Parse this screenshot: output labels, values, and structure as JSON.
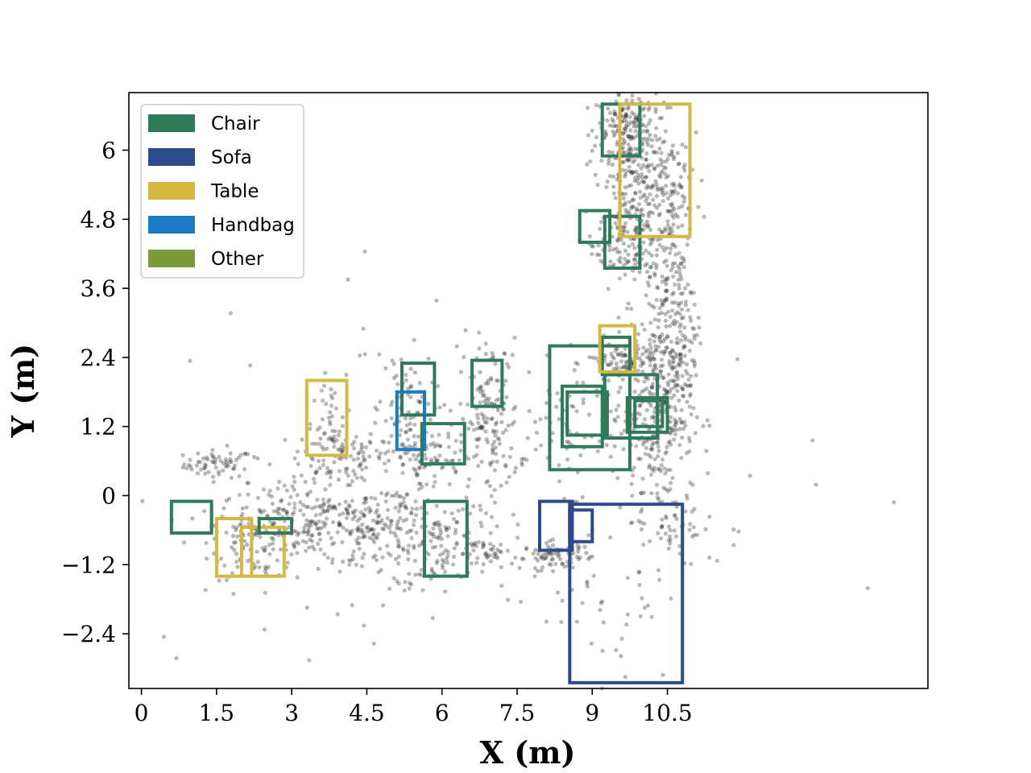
{
  "chart_data": {
    "type": "scatter",
    "xlabel": "X (m)",
    "ylabel": "Y (m)",
    "xlim": [
      -0.25,
      15.7
    ],
    "ylim": [
      -3.35,
      7.0
    ],
    "xticks": [
      0,
      1.5,
      3,
      4.5,
      6,
      7.5,
      9,
      10.5
    ],
    "xtick_labels": [
      "0",
      "1.5",
      "3",
      "4.5",
      "6",
      "7.5",
      "9",
      "10.5"
    ],
    "yticks": [
      -2.4,
      -1.2,
      0,
      1.2,
      2.4,
      3.6,
      4.8,
      6
    ],
    "ytick_labels": [
      "−2.4",
      "−1.2",
      "0",
      "1.2",
      "2.4",
      "3.6",
      "4.8",
      "6"
    ],
    "legend_position": "top-left",
    "legend": [
      {
        "label": "Chair",
        "color": "#2e7a5a"
      },
      {
        "label": "Sofa",
        "color": "#2e4a8c"
      },
      {
        "label": "Table",
        "color": "#d4b840"
      },
      {
        "label": "Handbag",
        "color": "#1a7ac4"
      },
      {
        "label": "Other",
        "color": "#7a9a3a"
      }
    ],
    "point_color": "#222222",
    "point_clusters": [
      {
        "cx": 1.55,
        "cy": 0.55,
        "sx": 0.35,
        "sy": 0.12,
        "n": 60
      },
      {
        "cx": 3.9,
        "cy": 0.7,
        "sx": 0.45,
        "sy": 0.25,
        "n": 90
      },
      {
        "cx": 3.8,
        "cy": 1.5,
        "sx": 0.2,
        "sy": 0.4,
        "n": 25
      },
      {
        "cx": 3.5,
        "cy": -0.5,
        "sx": 1.0,
        "sy": 0.35,
        "n": 260
      },
      {
        "cx": 2.3,
        "cy": -0.75,
        "sx": 0.45,
        "sy": 0.35,
        "n": 80
      },
      {
        "cx": 4.9,
        "cy": -0.65,
        "sx": 0.8,
        "sy": 0.4,
        "n": 120
      },
      {
        "cx": 5.9,
        "cy": -0.7,
        "sx": 0.45,
        "sy": 0.5,
        "n": 90
      },
      {
        "cx": 5.25,
        "cy": 1.3,
        "sx": 0.3,
        "sy": 0.6,
        "n": 100
      },
      {
        "cx": 5.75,
        "cy": 0.65,
        "sx": 0.45,
        "sy": 0.2,
        "n": 60
      },
      {
        "cx": 6.95,
        "cy": 1.3,
        "sx": 0.3,
        "sy": 0.7,
        "n": 160
      },
      {
        "cx": 7.0,
        "cy": -1.0,
        "sx": 0.35,
        "sy": 0.12,
        "n": 45
      },
      {
        "cx": 8.3,
        "cy": -1.05,
        "sx": 0.35,
        "sy": 0.12,
        "n": 70
      },
      {
        "cx": 8.7,
        "cy": 1.2,
        "sx": 0.55,
        "sy": 0.55,
        "n": 70
      },
      {
        "cx": 9.7,
        "cy": 2.3,
        "sx": 0.4,
        "sy": 0.2,
        "n": 90
      },
      {
        "cx": 10.3,
        "cy": 1.5,
        "sx": 0.35,
        "sy": 0.7,
        "n": 240
      },
      {
        "cx": 10.6,
        "cy": 3.2,
        "sx": 0.25,
        "sy": 1.3,
        "n": 260
      },
      {
        "cx": 10.0,
        "cy": 5.5,
        "sx": 0.45,
        "sy": 0.8,
        "n": 320
      },
      {
        "cx": 9.6,
        "cy": 6.3,
        "sx": 0.3,
        "sy": 0.35,
        "n": 120
      },
      {
        "cx": 9.6,
        "cy": 4.3,
        "sx": 0.35,
        "sy": 0.3,
        "n": 80
      },
      {
        "cx": 10.5,
        "cy": -0.4,
        "sx": 0.35,
        "sy": 0.4,
        "n": 60
      },
      {
        "cx": 9.4,
        "cy": -1.8,
        "sx": 0.6,
        "sy": 0.8,
        "n": 40
      },
      {
        "cx": 6.0,
        "cy": 0.3,
        "sx": 3.5,
        "sy": 1.6,
        "n": 120
      }
    ],
    "boxes": [
      {
        "category": "Chair",
        "x0": 0.6,
        "x1": 1.4,
        "y0": -0.65,
        "y1": -0.1
      },
      {
        "category": "Table",
        "x0": 1.5,
        "x1": 2.2,
        "y0": -1.4,
        "y1": -0.4
      },
      {
        "category": "Table",
        "x0": 2.0,
        "x1": 2.85,
        "y0": -1.4,
        "y1": -0.55
      },
      {
        "category": "Chair",
        "x0": 2.35,
        "x1": 3.0,
        "y0": -0.65,
        "y1": -0.4
      },
      {
        "category": "Table",
        "x0": 3.3,
        "x1": 4.1,
        "y0": 0.7,
        "y1": 2.0
      },
      {
        "category": "Chair",
        "x0": 5.2,
        "x1": 5.85,
        "y0": 1.4,
        "y1": 2.3
      },
      {
        "category": "Handbag",
        "x0": 5.1,
        "x1": 5.65,
        "y0": 0.8,
        "y1": 1.8
      },
      {
        "category": "Chair",
        "x0": 5.6,
        "x1": 6.45,
        "y0": 0.55,
        "y1": 1.25
      },
      {
        "category": "Chair",
        "x0": 5.65,
        "x1": 6.5,
        "y0": -1.4,
        "y1": -0.1
      },
      {
        "category": "Chair",
        "x0": 6.6,
        "x1": 7.2,
        "y0": 1.55,
        "y1": 2.35
      },
      {
        "category": "Chair",
        "x0": 8.15,
        "x1": 9.75,
        "y0": 0.45,
        "y1": 2.6
      },
      {
        "category": "Chair",
        "x0": 8.4,
        "x1": 9.2,
        "y0": 0.85,
        "y1": 1.9
      },
      {
        "category": "Chair",
        "x0": 8.5,
        "x1": 9.3,
        "y0": 1.05,
        "y1": 1.8
      },
      {
        "category": "Chair",
        "x0": 9.25,
        "x1": 10.3,
        "y0": 1.0,
        "y1": 2.1
      },
      {
        "category": "Chair",
        "x0": 9.7,
        "x1": 10.5,
        "y0": 1.1,
        "y1": 1.7
      },
      {
        "category": "Chair",
        "x0": 9.85,
        "x1": 10.4,
        "y0": 1.2,
        "y1": 1.65
      },
      {
        "category": "Chair",
        "x0": 9.2,
        "x1": 9.75,
        "y0": 2.1,
        "y1": 2.75
      },
      {
        "category": "Table",
        "x0": 9.15,
        "x1": 9.85,
        "y0": 2.15,
        "y1": 2.95
      },
      {
        "category": "Chair",
        "x0": 8.75,
        "x1": 9.35,
        "y0": 4.4,
        "y1": 4.95
      },
      {
        "category": "Chair",
        "x0": 9.25,
        "x1": 9.95,
        "y0": 3.95,
        "y1": 4.85
      },
      {
        "category": "Chair",
        "x0": 9.2,
        "x1": 9.95,
        "y0": 5.9,
        "y1": 6.8
      },
      {
        "category": "Table",
        "x0": 9.55,
        "x1": 10.95,
        "y0": 4.5,
        "y1": 6.8
      },
      {
        "category": "Sofa",
        "x0": 7.95,
        "x1": 8.6,
        "y0": -0.95,
        "y1": -0.1
      },
      {
        "category": "Sofa",
        "x0": 8.55,
        "x1": 9.0,
        "y0": -0.8,
        "y1": -0.25
      },
      {
        "category": "Sofa",
        "x0": 8.55,
        "x1": 10.8,
        "y0": -3.25,
        "y1": -0.15
      }
    ]
  }
}
